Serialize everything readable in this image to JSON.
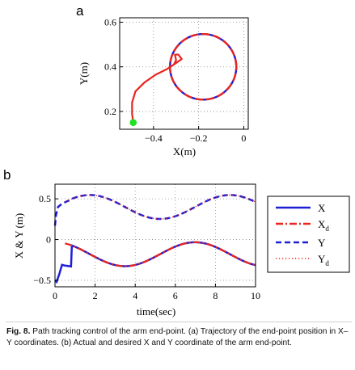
{
  "figure": {
    "caption_label": "Fig. 8.",
    "caption_text": "Path tracking control of the arm end-point. (a) Trajectory of the end-point position in X–Y coordinates. (b) Actual and desired X and Y coordinate of the arm end-point."
  },
  "colors": {
    "actual": "#1f1fd6",
    "desired": "#e8261e",
    "start_marker": "#22e022",
    "grid": "#8a8a8a"
  },
  "chart_data": [
    {
      "panel_label": "a",
      "type": "line",
      "xlabel": "X(m)",
      "ylabel": "Y(m)",
      "xlim": [
        -0.55,
        0.02
      ],
      "ylim": [
        0.12,
        0.62
      ],
      "xticks": [
        -0.4,
        -0.2,
        0
      ],
      "xtick_labels": [
        "−0.4",
        "−0.2",
        "0"
      ],
      "yticks": [
        0.2,
        0.4,
        0.6
      ],
      "ytick_labels": [
        "0.2",
        "0.4",
        "0.6"
      ],
      "grid": true,
      "start_point": {
        "x": -0.49,
        "y": 0.15
      },
      "circle": {
        "center_x": -0.18,
        "center_y": 0.4,
        "radius": 0.147
      },
      "approach_path": [
        [
          -0.49,
          0.15
        ],
        [
          -0.495,
          0.19
        ],
        [
          -0.495,
          0.24
        ],
        [
          -0.48,
          0.29
        ],
        [
          -0.44,
          0.33
        ],
        [
          -0.39,
          0.365
        ],
        [
          -0.34,
          0.39
        ],
        [
          -0.31,
          0.41
        ],
        [
          -0.275,
          0.435
        ],
        [
          -0.29,
          0.455
        ],
        [
          -0.305,
          0.455
        ],
        [
          -0.3,
          0.43
        ],
        [
          -0.31,
          0.41
        ]
      ],
      "series": [
        {
          "name": "X",
          "role": "actual"
        },
        {
          "name": "X_d",
          "role": "desired"
        }
      ]
    },
    {
      "panel_label": "b",
      "type": "line",
      "xlabel": "time(sec)",
      "ylabel": "X & Y (m)",
      "xlim": [
        0,
        10
      ],
      "ylim": [
        -0.58,
        0.68
      ],
      "xticks": [
        0,
        2,
        4,
        6,
        8,
        10
      ],
      "yticks": [
        -0.5,
        0,
        0.5
      ],
      "ytick_labels": [
        "−0.5",
        "0",
        "0.5"
      ],
      "grid": true,
      "legend_position": "right",
      "y_model": {
        "center": 0.4,
        "radius": 0.147,
        "omega": 0.9,
        "phase_deg": 0
      },
      "x_model": {
        "center": -0.18,
        "radius": 0.147,
        "omega": 0.9,
        "phase_deg": 90
      },
      "x_transient": [
        [
          0,
          -0.5
        ],
        [
          0.08,
          -0.52
        ],
        [
          0.22,
          -0.42
        ],
        [
          0.35,
          -0.31
        ],
        [
          0.5,
          -0.32
        ],
        [
          0.8,
          -0.33
        ]
      ],
      "y_transient": [
        [
          0,
          0.17
        ],
        [
          0.05,
          0.3
        ],
        [
          0.15,
          0.4
        ],
        [
          0.35,
          0.44
        ],
        [
          0.6,
          0.47
        ],
        [
          0.8,
          0.49
        ]
      ],
      "series": [
        {
          "name": "X",
          "role": "actual"
        },
        {
          "name": "X",
          "subscript": "d",
          "role": "desired"
        },
        {
          "name": "Y",
          "role": "actual"
        },
        {
          "name": "Y",
          "subscript": "d",
          "role": "desired"
        }
      ]
    }
  ]
}
